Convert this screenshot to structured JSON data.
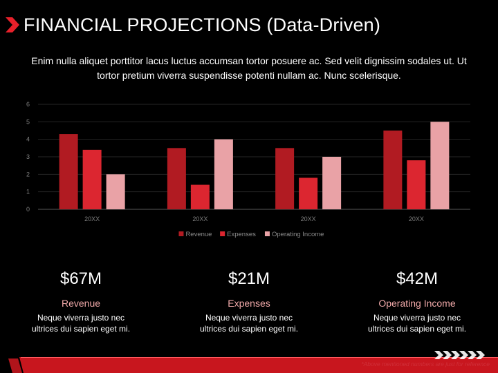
{
  "header": {
    "title": "FINANCIAL PROJECTIONS (Data-Driven)",
    "icon": "chevron-right-icon",
    "accent_color": "#e8202a"
  },
  "intro": {
    "text": "Enim nulla aliquet porttitor lacus luctus accumsan tortor posuere ac. Sed velit dignissim sodales ut. Ut tortor pretium viverra suspendisse potenti nullam ac. Nunc scelerisque."
  },
  "chart_data": {
    "type": "bar",
    "categories": [
      "20XX",
      "20XX",
      "20XX",
      "20XX"
    ],
    "series": [
      {
        "name": "Revenue",
        "values": [
          4.3,
          3.5,
          3.5,
          4.5
        ],
        "color": "#b11b22"
      },
      {
        "name": "Expenses",
        "values": [
          3.4,
          1.4,
          1.8,
          2.8
        ],
        "color": "#dc2630"
      },
      {
        "name": "Operating Income",
        "values": [
          2.0,
          4.0,
          3.0,
          5.0
        ],
        "color": "#e9a2a6"
      }
    ],
    "ylim": [
      0,
      6
    ],
    "yticks": [
      "0",
      "1",
      "2",
      "3",
      "4",
      "5",
      "6"
    ],
    "grid": true,
    "legend_position": "bottom"
  },
  "kpis": [
    {
      "value": "$67M",
      "label": "Revenue",
      "desc_line1": "Neque viverra justo nec",
      "desc_line2": "ultrices dui sapien eget mi."
    },
    {
      "value": "$21M",
      "label": "Expenses",
      "desc_line1": "Neque viverra justo nec",
      "desc_line2": "ultrices dui sapien eget mi."
    },
    {
      "value": "$42M",
      "label": "Operating Income",
      "desc_line1": "Neque viverra justo nec",
      "desc_line2": "ultrices dui sapien eget mi."
    }
  ],
  "footer": {
    "note": "*Above mentioned numbers are just for reference",
    "stripe_color": "#c8161e"
  }
}
